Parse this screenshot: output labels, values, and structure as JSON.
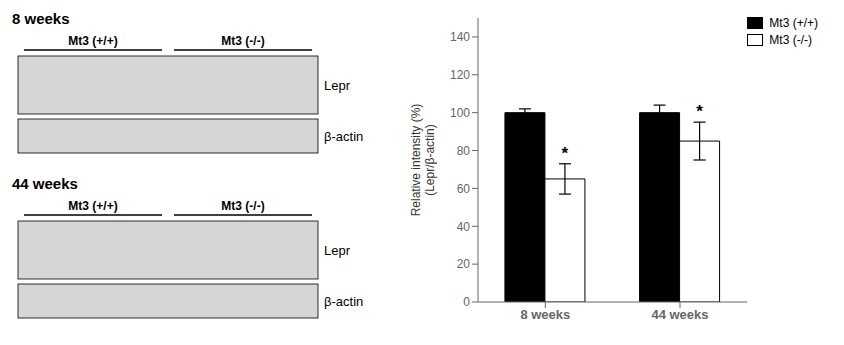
{
  "chart_data": {
    "type": "bar",
    "categories": [
      "8 weeks",
      "44 weeks"
    ],
    "series": [
      {
        "name": "Mt3 (+/+)",
        "color": "#000000",
        "values": [
          100,
          100
        ],
        "errors": [
          2,
          4
        ]
      },
      {
        "name": "Mt3 (-/-)",
        "color": "#ffffff",
        "values": [
          65,
          85
        ],
        "errors": [
          8,
          10
        ]
      }
    ],
    "y_label": "Relative intensity (%)\n(Lepr/β-actin)",
    "ylim": [
      0,
      150
    ],
    "yticks": [
      0,
      20,
      40,
      60,
      80,
      100,
      120,
      140
    ],
    "legend": "upper right",
    "annotations": [
      {
        "text": "*",
        "category": "8 weeks",
        "series": "Mt3 (-/-)"
      },
      {
        "text": "*",
        "category": "44 weeks",
        "series": "Mt3 (-/-)"
      }
    ],
    "blot_panels": [
      {
        "title": "8 weeks",
        "groups": [
          "Mt3 (+/+)",
          "Mt3 (-/-)"
        ],
        "rows": [
          "Lepr",
          "β-actin"
        ]
      },
      {
        "title": "44 weeks",
        "groups": [
          "Mt3 (+/+)",
          "Mt3 (-/-)"
        ],
        "rows": [
          "Lepr",
          "β-actin"
        ]
      }
    ]
  }
}
